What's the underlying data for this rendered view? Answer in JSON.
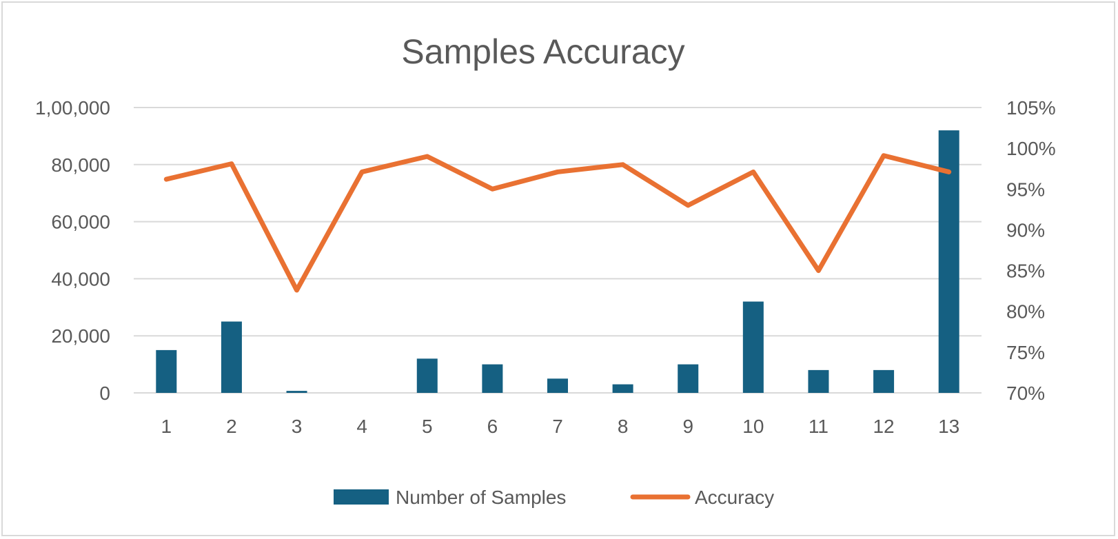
{
  "chart_data": {
    "type": "bar",
    "title": "Samples Accuracy",
    "categories": [
      "1",
      "2",
      "3",
      "4",
      "5",
      "6",
      "7",
      "8",
      "9",
      "10",
      "11",
      "12",
      "13"
    ],
    "series": [
      {
        "name": "Number of Samples",
        "type": "bar",
        "axis": "left",
        "color": "#156082",
        "values": [
          15000,
          25000,
          700,
          0,
          12000,
          10000,
          5000,
          3000,
          10000,
          32000,
          8000,
          8000,
          92000
        ]
      },
      {
        "name": "Accuracy",
        "type": "line",
        "axis": "right",
        "color": "#E97132",
        "values": [
          0.962,
          0.981,
          0.826,
          0.971,
          0.99,
          0.95,
          0.971,
          0.98,
          0.93,
          0.971,
          0.85,
          0.991,
          0.971
        ]
      }
    ],
    "y_left": {
      "min": 0,
      "max": 100000,
      "ticks": [
        0,
        20000,
        40000,
        60000,
        80000,
        100000
      ],
      "tick_labels": [
        "0",
        "20,000",
        "40,000",
        "60,000",
        "80,000",
        "1,00,000"
      ]
    },
    "y_right": {
      "min": 0.7,
      "max": 1.05,
      "ticks": [
        0.7,
        0.75,
        0.8,
        0.85,
        0.9,
        0.95,
        1.0,
        1.05
      ],
      "tick_labels": [
        "70%",
        "75%",
        "80%",
        "85%",
        "90%",
        "95%",
        "100%",
        "105%"
      ]
    },
    "grid": true,
    "legend_position": "bottom",
    "gridline_color": "#d9d9d9",
    "text_color": "#595959"
  }
}
